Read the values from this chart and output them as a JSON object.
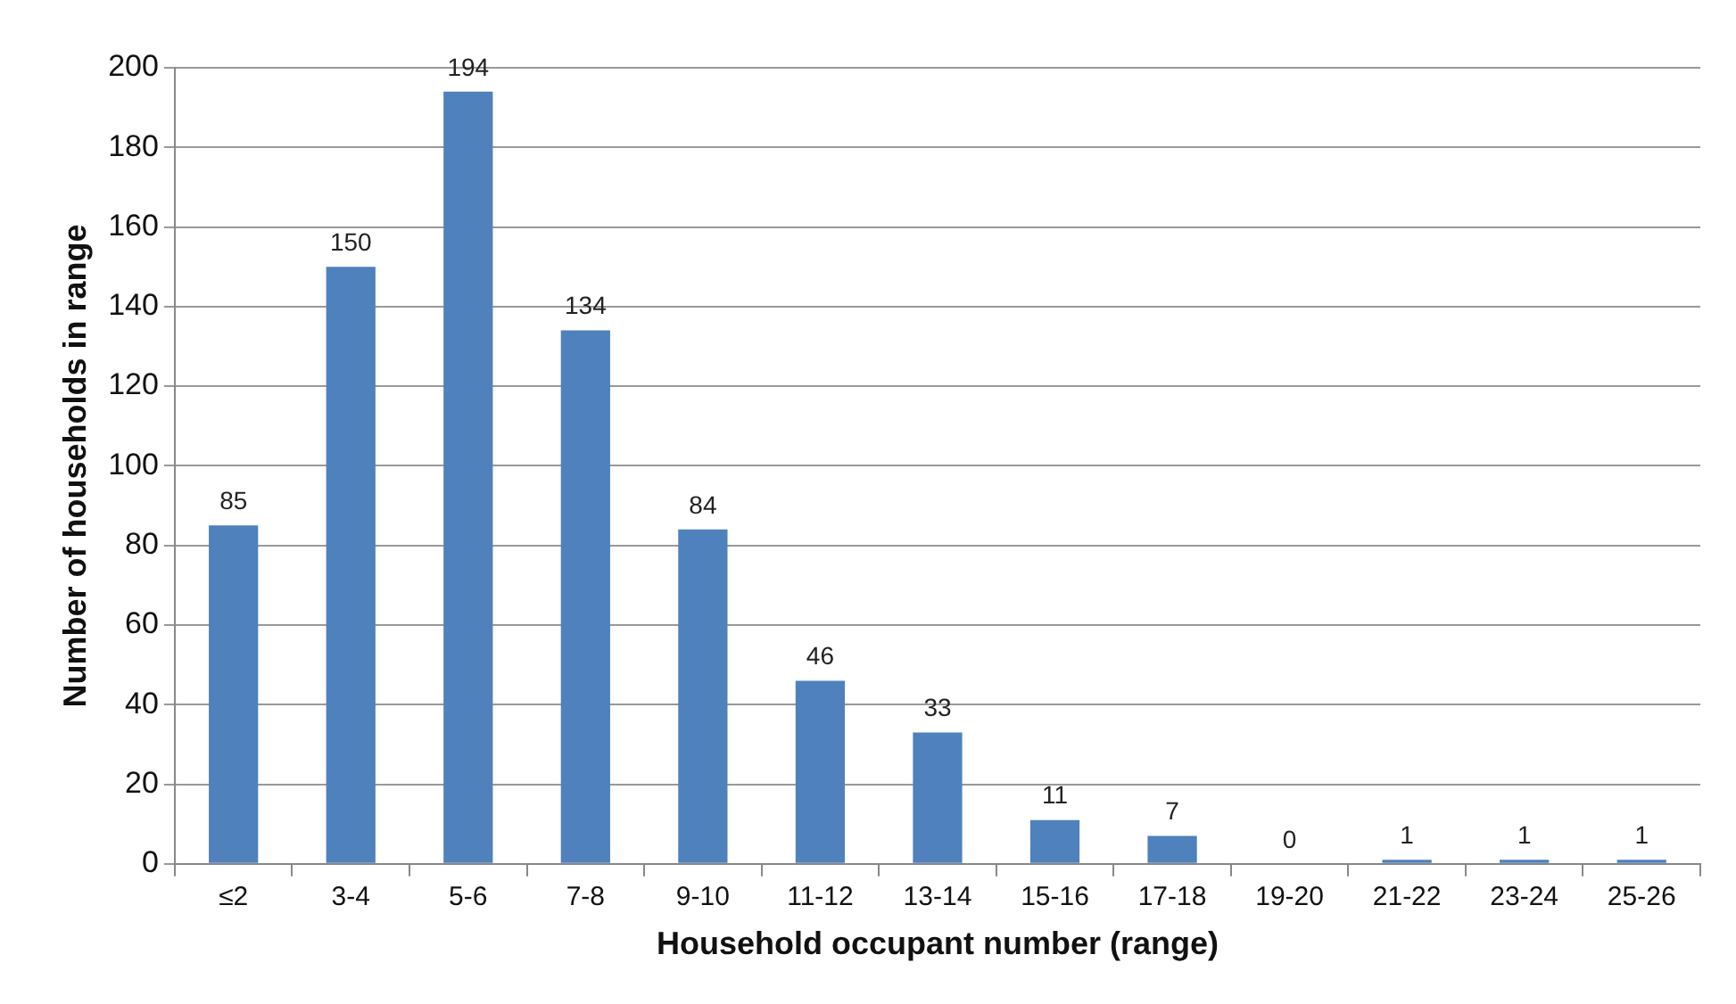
{
  "chart_data": {
    "type": "bar",
    "xlabel": "Household occupant number (range)",
    "ylabel": "Number of households in range",
    "categories": [
      "≤2",
      "3-4",
      "5-6",
      "7-8",
      "9-10",
      "11-12",
      "13-14",
      "15-16",
      "17-18",
      "19-20",
      "21-22",
      "23-24",
      "25-26"
    ],
    "values": [
      85,
      150,
      194,
      134,
      84,
      46,
      33,
      11,
      7,
      0,
      1,
      1,
      1
    ],
    "color": "#4f81bd",
    "ylim": [
      0,
      200
    ],
    "yticks": [
      0,
      20,
      40,
      60,
      80,
      100,
      120,
      140,
      160,
      180,
      200
    ],
    "grid": "y",
    "data_labels": true,
    "legend": false
  }
}
